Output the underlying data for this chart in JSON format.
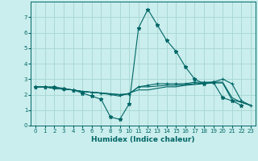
{
  "xlabel": "Humidex (Indice chaleur)",
  "xlim": [
    -0.5,
    23.5
  ],
  "ylim": [
    0,
    8
  ],
  "xticks": [
    0,
    1,
    2,
    3,
    4,
    5,
    6,
    7,
    8,
    9,
    10,
    11,
    12,
    13,
    14,
    15,
    16,
    17,
    18,
    19,
    20,
    21,
    22,
    23
  ],
  "yticks": [
    0,
    1,
    2,
    3,
    4,
    5,
    6,
    7
  ],
  "bg_color": "#caeeed",
  "grid_color": "#aad8d5",
  "line_color": "#006666",
  "lines": [
    {
      "x": [
        0,
        1,
        2,
        3,
        4,
        5,
        6,
        7,
        8,
        9,
        10,
        11,
        12,
        13,
        14,
        15,
        16,
        17,
        18,
        19,
        20,
        21,
        22,
        23
      ],
      "y": [
        2.5,
        2.5,
        2.5,
        2.4,
        2.3,
        2.1,
        1.9,
        1.7,
        0.55,
        0.4,
        1.4,
        6.3,
        7.5,
        6.5,
        5.5,
        4.8,
        3.8,
        3.0,
        2.7,
        2.8,
        1.8,
        1.6,
        1.3,
        null
      ],
      "marker": "*",
      "linestyle": "-"
    },
    {
      "x": [
        0,
        1,
        2,
        3,
        4,
        5,
        6,
        7,
        8,
        9,
        10,
        11,
        12,
        13,
        14,
        15,
        16,
        17,
        18,
        19,
        20,
        21,
        22,
        23
      ],
      "y": [
        2.5,
        2.5,
        2.4,
        2.35,
        2.3,
        2.2,
        2.15,
        2.1,
        2.05,
        2.0,
        2.05,
        2.5,
        2.6,
        2.7,
        2.7,
        2.7,
        2.7,
        2.8,
        2.8,
        2.8,
        3.0,
        2.7,
        1.6,
        1.3
      ],
      "marker": "+",
      "linestyle": "-"
    },
    {
      "x": [
        0,
        1,
        2,
        3,
        4,
        5,
        6,
        7,
        8,
        9,
        10,
        11,
        12,
        13,
        14,
        15,
        16,
        17,
        18,
        19,
        20,
        21,
        22,
        23
      ],
      "y": [
        2.5,
        2.5,
        2.4,
        2.35,
        2.3,
        2.2,
        2.15,
        2.1,
        2.05,
        2.0,
        2.05,
        2.5,
        2.5,
        2.55,
        2.6,
        2.6,
        2.65,
        2.7,
        2.75,
        2.8,
        2.8,
        1.8,
        1.5,
        1.3
      ],
      "marker": null,
      "linestyle": "-"
    },
    {
      "x": [
        0,
        1,
        2,
        3,
        4,
        5,
        6,
        7,
        8,
        9,
        10,
        11,
        12,
        13,
        14,
        15,
        16,
        17,
        18,
        19,
        20,
        21,
        22,
        23
      ],
      "y": [
        2.5,
        2.5,
        2.4,
        2.35,
        2.3,
        2.2,
        2.15,
        2.1,
        2.0,
        1.9,
        2.1,
        2.3,
        2.3,
        2.4,
        2.5,
        2.5,
        2.6,
        2.65,
        2.7,
        2.75,
        2.75,
        1.65,
        1.5,
        1.3
      ],
      "marker": null,
      "linestyle": "-"
    }
  ]
}
